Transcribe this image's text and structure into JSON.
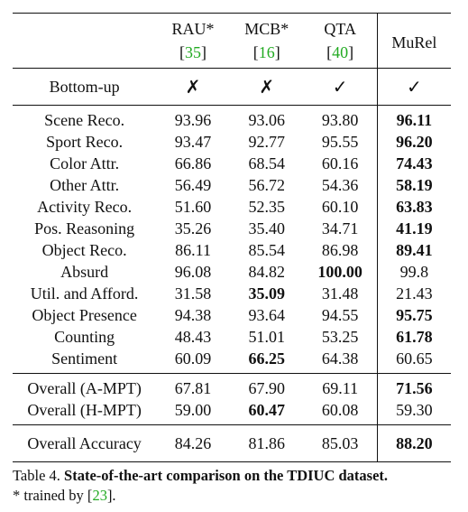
{
  "header": {
    "cols": [
      {
        "name": "RAU*",
        "cite": "35"
      },
      {
        "name": "MCB*",
        "cite": "16"
      },
      {
        "name": "QTA",
        "cite": "40"
      },
      {
        "name": "MuRel",
        "cite": ""
      }
    ]
  },
  "bottom_up": {
    "label": "Bottom-up",
    "values": [
      "✗",
      "✗",
      "✓",
      "✓"
    ]
  },
  "rows": [
    {
      "label": "Scene Reco.",
      "values": [
        "93.96",
        "93.06",
        "93.80",
        "96.11"
      ]
    },
    {
      "label": "Sport Reco.",
      "values": [
        "93.47",
        "92.77",
        "95.55",
        "96.20"
      ]
    },
    {
      "label": "Color Attr.",
      "values": [
        "66.86",
        "68.54",
        "60.16",
        "74.43"
      ]
    },
    {
      "label": "Other Attr.",
      "values": [
        "56.49",
        "56.72",
        "54.36",
        "58.19"
      ]
    },
    {
      "label": "Activity Reco.",
      "values": [
        "51.60",
        "52.35",
        "60.10",
        "63.83"
      ]
    },
    {
      "label": "Pos. Reasoning",
      "values": [
        "35.26",
        "35.40",
        "34.71",
        "41.19"
      ]
    },
    {
      "label": "Object Reco.",
      "values": [
        "86.11",
        "85.54",
        "86.98",
        "89.41"
      ]
    },
    {
      "label": "Absurd",
      "values": [
        "96.08",
        "84.82",
        "100.00",
        "99.8"
      ]
    },
    {
      "label": "Util. and Afford.",
      "values": [
        "31.58",
        "35.09",
        "31.48",
        "21.43"
      ]
    },
    {
      "label": "Object Presence",
      "values": [
        "94.38",
        "93.64",
        "94.55",
        "95.75"
      ]
    },
    {
      "label": "Counting",
      "values": [
        "48.43",
        "51.01",
        "53.25",
        "61.78"
      ]
    },
    {
      "label": "Sentiment",
      "values": [
        "60.09",
        "66.25",
        "64.38",
        "60.65"
      ]
    }
  ],
  "overall_rows": [
    {
      "label": "Overall (A-MPT)",
      "values": [
        "67.81",
        "67.90",
        "69.11",
        "71.56"
      ]
    },
    {
      "label": "Overall (H-MPT)",
      "values": [
        "59.00",
        "60.47",
        "60.08",
        "59.30"
      ]
    }
  ],
  "accuracy_row": {
    "label": "Overall Accuracy",
    "values": [
      "84.26",
      "81.86",
      "85.03",
      "88.20"
    ]
  },
  "caption": {
    "prefix": "Table 4. ",
    "bold": "State-of-the-art comparison on the TDIUC dataset.",
    "line2_prefix": "* trained by [",
    "line2_cite": "23",
    "line2_suffix": "]."
  }
}
